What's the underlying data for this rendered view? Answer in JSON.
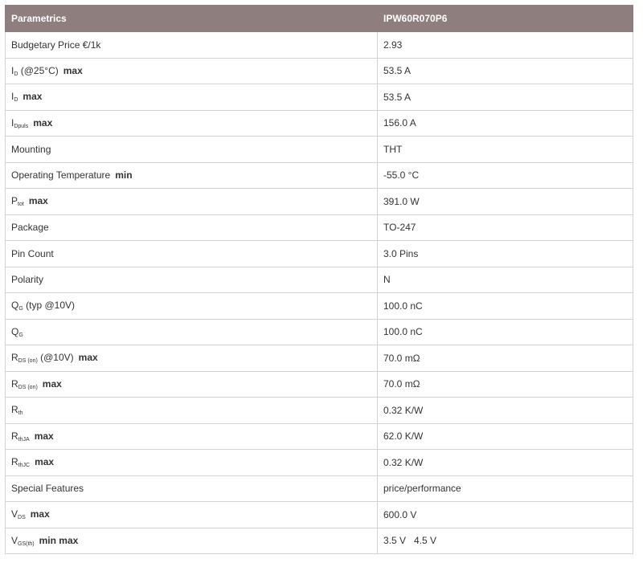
{
  "header": {
    "col1": "Parametrics",
    "col2": "IPW60R070P6"
  },
  "rows": [
    {
      "main": "Budgetary Price €/1k",
      "sub": "",
      "rest": "",
      "qual": "",
      "value": "2.93"
    },
    {
      "main": "I",
      "sub": "D",
      "rest": " (@25°C)",
      "qual": "max",
      "value": "53.5 A"
    },
    {
      "main": "I",
      "sub": "D",
      "rest": "",
      "qual": "max",
      "value": "53.5 A"
    },
    {
      "main": "I",
      "sub": "Dpuls",
      "rest": "",
      "qual": "max",
      "value": "156.0 A"
    },
    {
      "main": "Mounting",
      "sub": "",
      "rest": "",
      "qual": "",
      "value": "THT"
    },
    {
      "main": "Operating Temperature",
      "sub": "",
      "rest": "",
      "qual": "min",
      "value": "-55.0 °C"
    },
    {
      "main": "P",
      "sub": "tot",
      "rest": "",
      "qual": "max",
      "value": "391.0 W"
    },
    {
      "main": "Package",
      "sub": "",
      "rest": "",
      "qual": "",
      "value": "TO-247"
    },
    {
      "main": "Pin Count",
      "sub": "",
      "rest": "",
      "qual": "",
      "value": "3.0 Pins"
    },
    {
      "main": "Polarity",
      "sub": "",
      "rest": "",
      "qual": "",
      "value": "N"
    },
    {
      "main": "Q",
      "sub": "G",
      "rest": " (typ @10V)",
      "qual": "",
      "value": "100.0 nC"
    },
    {
      "main": "Q",
      "sub": "G",
      "rest": "",
      "qual": "",
      "value": "100.0 nC"
    },
    {
      "main": "R",
      "sub": "DS (on)",
      "rest": " (@10V)",
      "qual": "max",
      "value": "70.0 mΩ"
    },
    {
      "main": "R",
      "sub": "DS (on)",
      "rest": "",
      "qual": "max",
      "value": "70.0 mΩ"
    },
    {
      "main": "R",
      "sub": "th",
      "rest": "",
      "qual": "",
      "value": "0.32 K/W"
    },
    {
      "main": "R",
      "sub": "thJA",
      "rest": "",
      "qual": "max",
      "value": "62.0 K/W"
    },
    {
      "main": "R",
      "sub": "thJC",
      "rest": "",
      "qual": "max",
      "value": "0.32 K/W"
    },
    {
      "main": "Special Features",
      "sub": "",
      "rest": "",
      "qual": "",
      "value": "price/performance"
    },
    {
      "main": "V",
      "sub": "DS",
      "rest": "",
      "qual": "max",
      "value": "600.0 V"
    },
    {
      "main": "V",
      "sub": "GS(th)",
      "rest": "",
      "qual": "min  max",
      "value": "3.5 V   4.5 V"
    }
  ]
}
